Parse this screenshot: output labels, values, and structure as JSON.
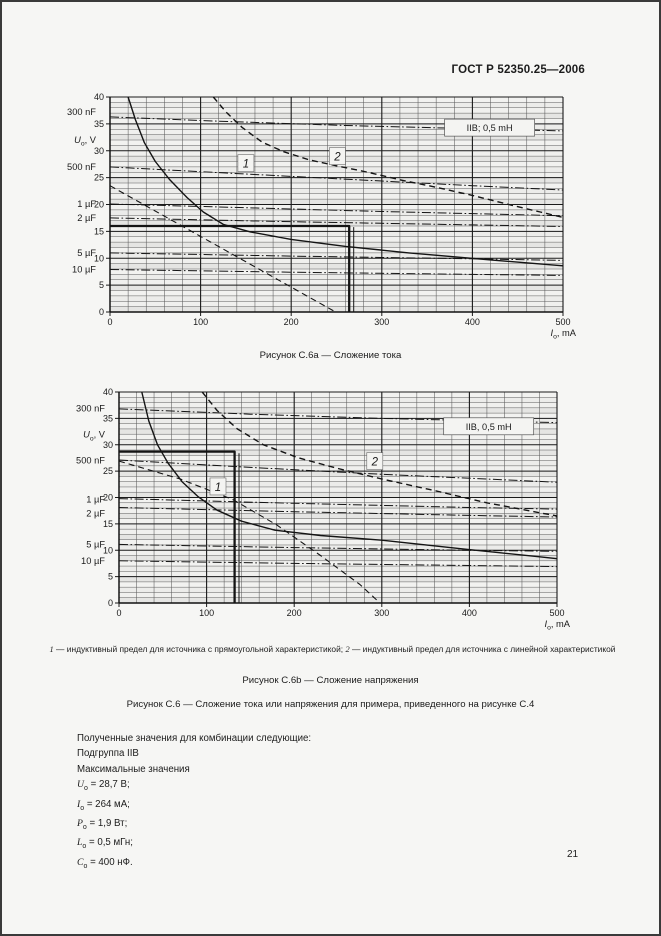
{
  "header": {
    "title": "ГОСТ Р 52350.25—2006"
  },
  "page_number": "21",
  "caption_main": "Рисунок С.6 — Сложение тока или напряжения для примера, приведенного на рисунке С.4",
  "legend_parts": [
    {
      "t": "1",
      "i": true
    },
    {
      "t": " — индуктивный предел для источника с прямоугольной характеристикой; "
    },
    {
      "t": "2",
      "i": true
    },
    {
      "t": " — индуктивный предел для источника с линейной характеристикой"
    }
  ],
  "results": {
    "intro": "Полученные значения для комбинации следующие:",
    "subgroup": "Подгруппа IIB",
    "max_label": "Максимальные значения",
    "values": [
      {
        "name": "Uo",
        "parts": [
          {
            "t": "U",
            "i": true
          },
          {
            "t": "o",
            "sub": true
          },
          {
            "t": " = 28,7 В;"
          }
        ]
      },
      {
        "name": "Io",
        "parts": [
          {
            "t": "I",
            "i": true
          },
          {
            "t": "o",
            "sub": true
          },
          {
            "t": " = 264 мА;"
          }
        ]
      },
      {
        "name": "Po",
        "parts": [
          {
            "t": "P",
            "i": true
          },
          {
            "t": "o",
            "sub": true
          },
          {
            "t": " = 1,9 Вт;"
          }
        ]
      },
      {
        "name": "Lo",
        "parts": [
          {
            "t": "L",
            "i": true
          },
          {
            "t": "o",
            "sub": true
          },
          {
            "t": " = 0,5 мГн;"
          }
        ]
      },
      {
        "name": "Co",
        "parts": [
          {
            "t": "C",
            "i": true
          },
          {
            "t": "o",
            "sub": true
          },
          {
            "t": " = 400 нФ."
          }
        ]
      }
    ]
  },
  "chart_data": [
    {
      "type": "line",
      "figure": "C.6a",
      "title": "Рисунок С.6а — Сложение тока",
      "box_label": "IIB; 0,5 mH",
      "box_pos": {
        "x": 419,
        "y": 34.3
      },
      "xlabel_parts": [
        {
          "t": "I",
          "i": true
        },
        {
          "t": "o",
          "sub": true
        },
        {
          "t": ", mA"
        }
      ],
      "x_ticks": [
        0,
        100,
        200,
        300,
        400,
        500
      ],
      "y_ticks": [
        0,
        5,
        10,
        15,
        20,
        25,
        30,
        35,
        40
      ],
      "xlim": [
        0,
        500
      ],
      "ylim": [
        0,
        40
      ],
      "x_minor": 20,
      "y_minor": 1,
      "curve_labels": [
        {
          "text": "1",
          "x": 150,
          "y": 27.6
        },
        {
          "text": "2",
          "x": 251,
          "y": 28.9
        }
      ],
      "side_labels": [
        {
          "text": "300 nF",
          "v": 37.2
        },
        {
          "parts": [
            {
              "t": "U",
              "i": true
            },
            {
              "t": "o",
              "sub": true
            },
            {
              "t": ", V"
            }
          ],
          "v": 32.0
        },
        {
          "text": "500 nF",
          "v": 27.0
        },
        {
          "text": "1 µF",
          "v": 20.1
        },
        {
          "text": "2 µF",
          "v": 17.5
        },
        {
          "text": "5 µF",
          "v": 11.0
        },
        {
          "text": "10 µF",
          "v": 7.9
        }
      ],
      "series": [
        {
          "name": "capacitive-limit-300nF",
          "style": "dashdot",
          "w": 1,
          "points": [
            [
              0,
              36.3
            ],
            [
              120,
              35.5
            ],
            [
              260,
              34.7
            ],
            [
              400,
              34.1
            ],
            [
              500,
              33.7
            ]
          ]
        },
        {
          "name": "capacitive-limit-500nF",
          "style": "dashdot",
          "w": 1,
          "points": [
            [
              0,
              27.0
            ],
            [
              100,
              26.1
            ],
            [
              250,
              24.8
            ],
            [
              400,
              23.5
            ],
            [
              500,
              22.7
            ]
          ]
        },
        {
          "name": "capacitive-limit-1uF",
          "style": "dashdot",
          "w": 1,
          "points": [
            [
              0,
              20.1
            ],
            [
              150,
              19.4
            ],
            [
              300,
              18.7
            ],
            [
              500,
              17.9
            ]
          ]
        },
        {
          "name": "capacitive-limit-2uF",
          "style": "dashdot",
          "w": 1,
          "points": [
            [
              0,
              17.5
            ],
            [
              200,
              16.8
            ],
            [
              400,
              16.2
            ],
            [
              500,
              15.9
            ]
          ]
        },
        {
          "name": "capacitive-limit-5uF",
          "style": "dashdot",
          "w": 1,
          "points": [
            [
              0,
              11.0
            ],
            [
              200,
              10.4
            ],
            [
              400,
              9.9
            ],
            [
              500,
              9.6
            ]
          ]
        },
        {
          "name": "capacitive-limit-10uF",
          "style": "dashdot",
          "w": 1,
          "points": [
            [
              0,
              7.9
            ],
            [
              200,
              7.4
            ],
            [
              400,
              7.0
            ],
            [
              500,
              6.8
            ]
          ]
        },
        {
          "name": "inductive-limit-rectangular-1",
          "style": "solid",
          "w": 1.4,
          "points": [
            [
              20,
              40
            ],
            [
              28,
              35.8
            ],
            [
              38,
              31.5
            ],
            [
              50,
              28
            ],
            [
              66,
              24.6
            ],
            [
              85,
              21.3
            ],
            [
              103,
              18.6
            ],
            [
              125,
              16.3
            ],
            [
              155,
              14.9
            ],
            [
              200,
              13.5
            ],
            [
              260,
              12.2
            ],
            [
              330,
              11.0
            ],
            [
              420,
              9.7
            ],
            [
              500,
              8.6
            ]
          ]
        },
        {
          "name": "inductive-limit-linear-2",
          "style": "dashed",
          "w": 1.4,
          "points": [
            [
              114,
              40
            ],
            [
              128,
              37.2
            ],
            [
              146,
              34.3
            ],
            [
              168,
              31.6
            ],
            [
              192,
              29.8
            ],
            [
              220,
              28.3
            ],
            [
              250,
              27.2
            ],
            [
              285,
              26.0
            ],
            [
              320,
              24.6
            ],
            [
              360,
              23.2
            ],
            [
              400,
              21.7
            ],
            [
              445,
              19.8
            ],
            [
              475,
              18.6
            ],
            [
              500,
              17.6
            ]
          ]
        },
        {
          "name": "linear-source-characteristic",
          "style": "dashed",
          "w": 1.1,
          "points": [
            [
              0,
              23.5
            ],
            [
              249,
              0
            ]
          ]
        },
        {
          "name": "rectangular-source-characteristic",
          "style": "solid",
          "w": 2.3,
          "points": [
            [
              0,
              16
            ],
            [
              264,
              16
            ],
            [
              264,
              0
            ]
          ]
        },
        {
          "name": "rect-vertical-second-line",
          "style": "solid",
          "w": 1,
          "points": [
            [
              269,
              15.8
            ],
            [
              269,
              0
            ]
          ]
        }
      ]
    },
    {
      "type": "line",
      "figure": "C.6b",
      "title": "Рисунок С.6b — Сложение напряжения",
      "box_label": "IIB, 0,5 mH",
      "box_pos": {
        "x": 422,
        "y": 33.5
      },
      "xlabel_parts": [
        {
          "t": "I",
          "i": true
        },
        {
          "t": "o",
          "sub": true
        },
        {
          "t": ", mA"
        }
      ],
      "x_ticks": [
        0,
        100,
        200,
        300,
        400,
        500
      ],
      "y_ticks": [
        0,
        5,
        10,
        15,
        20,
        25,
        30,
        35,
        40
      ],
      "xlim": [
        0,
        500
      ],
      "ylim": [
        0,
        40
      ],
      "x_minor": 20,
      "y_minor": 1,
      "curve_labels": [
        {
          "text": "1",
          "x": 113,
          "y": 22.0
        },
        {
          "text": "2",
          "x": 292,
          "y": 26.8
        }
      ],
      "side_labels": [
        {
          "text": "300 nF",
          "v": 36.9
        },
        {
          "parts": [
            {
              "t": "U",
              "i": true
            },
            {
              "t": "o",
              "sub": true
            },
            {
              "t": ", V"
            }
          ],
          "v": 31.9
        },
        {
          "text": "500 nF",
          "v": 27.0
        },
        {
          "text": "1 µF",
          "v": 19.6
        },
        {
          "text": "2 µF",
          "v": 17.0
        },
        {
          "text": "5 µF",
          "v": 11.1
        },
        {
          "text": "10 µF",
          "v": 8.0
        }
      ],
      "series": [
        {
          "name": "capacitive-limit-300nF",
          "style": "dashdot",
          "w": 1,
          "points": [
            [
              0,
              36.8
            ],
            [
              150,
              35.8
            ],
            [
              300,
              35.0
            ],
            [
              500,
              34.2
            ]
          ]
        },
        {
          "name": "capacitive-limit-500nF",
          "style": "dashdot",
          "w": 1,
          "points": [
            [
              0,
              27.1
            ],
            [
              150,
              25.7
            ],
            [
              300,
              24.4
            ],
            [
              500,
              22.9
            ]
          ]
        },
        {
          "name": "capacitive-limit-1uF",
          "style": "dashdot",
          "w": 1,
          "points": [
            [
              0,
              19.8
            ],
            [
              200,
              18.9
            ],
            [
              400,
              18.1
            ],
            [
              500,
              17.8
            ]
          ]
        },
        {
          "name": "capacitive-limit-2uF",
          "style": "dashdot",
          "w": 1,
          "points": [
            [
              0,
              18.1
            ],
            [
              200,
              17.3
            ],
            [
              400,
              16.6
            ],
            [
              500,
              16.3
            ]
          ]
        },
        {
          "name": "capacitive-limit-5uF",
          "style": "dashdot",
          "w": 1,
          "points": [
            [
              0,
              11.1
            ],
            [
              200,
              10.5
            ],
            [
              400,
              10.0
            ],
            [
              500,
              9.8
            ]
          ]
        },
        {
          "name": "capacitive-limit-10uF",
          "style": "dashdot",
          "w": 1,
          "points": [
            [
              0,
              8.0
            ],
            [
              200,
              7.5
            ],
            [
              400,
              7.1
            ],
            [
              500,
              6.9
            ]
          ]
        },
        {
          "name": "inductive-limit-rectangular-1",
          "style": "solid",
          "w": 1.4,
          "points": [
            [
              26,
              40
            ],
            [
              34,
              34.5
            ],
            [
              44,
              30
            ],
            [
              56,
              26.5
            ],
            [
              72,
              23
            ],
            [
              90,
              20.2
            ],
            [
              112,
              17.6
            ],
            [
              140,
              15.5
            ],
            [
              178,
              13.8
            ],
            [
              230,
              12.8
            ],
            [
              300,
              11.9
            ],
            [
              390,
              10.3
            ],
            [
              483,
              8.7
            ],
            [
              500,
              8.4
            ]
          ]
        },
        {
          "name": "inductive-limit-linear-2",
          "style": "dashed",
          "w": 1.4,
          "points": [
            [
              95,
              40
            ],
            [
              112,
              36.5
            ],
            [
              135,
              33
            ],
            [
              165,
              30
            ],
            [
              205,
              27.5
            ],
            [
              250,
              25.5
            ],
            [
              300,
              23.5
            ],
            [
              355,
              21.5
            ],
            [
              420,
              19
            ],
            [
              500,
              16.5
            ]
          ]
        },
        {
          "name": "linear-source-characteristic",
          "style": "dashed",
          "w": 1.1,
          "points": [
            [
              0,
              26.9
            ],
            [
              70,
              23.5
            ],
            [
              130,
              19.6
            ],
            [
              180,
              14.8
            ],
            [
              230,
              9
            ],
            [
              275,
              3.5
            ],
            [
              298,
              0
            ]
          ]
        },
        {
          "name": "rectangular-source-characteristic",
          "style": "solid",
          "w": 2.3,
          "points": [
            [
              0,
              28.7
            ],
            [
              132,
              28.7
            ],
            [
              132,
              0
            ]
          ]
        },
        {
          "name": "rect-vertical-second-line",
          "style": "solid",
          "w": 1,
          "points": [
            [
              137,
              28.4
            ],
            [
              137,
              0
            ]
          ]
        }
      ]
    }
  ]
}
